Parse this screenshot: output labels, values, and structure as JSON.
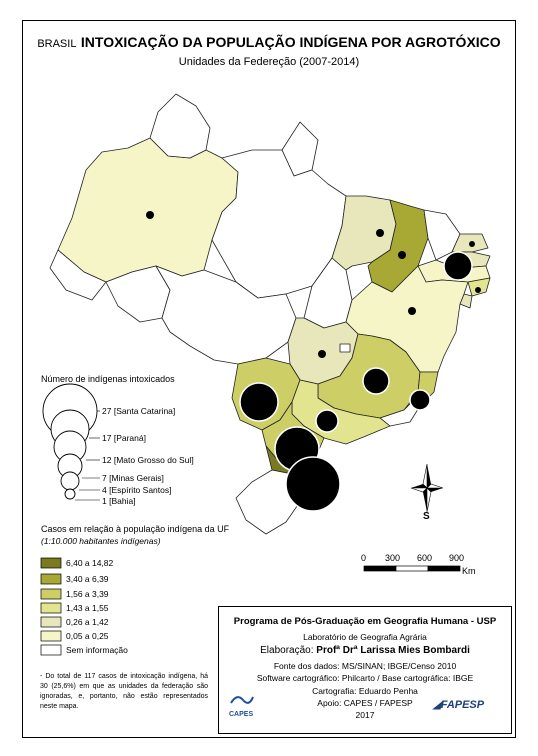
{
  "header": {
    "prefix": "BRASIL",
    "title": "INTOXICAÇÃO DA POPULAÇÃO INDÍGENA POR AGROTÓXICO",
    "subtitle": "Unidades da Federeção (2007-2014)"
  },
  "size_legend": {
    "title": "Número de indígenas intoxicados",
    "entries": [
      {
        "value": "27",
        "state": "[Santa Catarina]"
      },
      {
        "value": "17",
        "state": "[Paraná]"
      },
      {
        "value": "12",
        "state": "[Mato Grosso do Sul]"
      },
      {
        "value": "7",
        "state": "[Minas Gerais]"
      },
      {
        "value": "4",
        "state": "[Espírito Santos]"
      },
      {
        "value": "1",
        "state": "[Bahia]"
      }
    ]
  },
  "color_legend": {
    "title": "Casos em relação à população indígena da UF",
    "subtitle": "(1:10.000 habitantes indígenas)",
    "classes": [
      {
        "label": "6,40 a 14,82",
        "color": "#7a7a20"
      },
      {
        "label": "3,40 a 6,39",
        "color": "#a8a835"
      },
      {
        "label": "1,56 a 3,39",
        "color": "#cdcf66"
      },
      {
        "label": "1,43 a 1,55",
        "color": "#e2e48f"
      },
      {
        "label": "0,26 a 1,42",
        "color": "#e8e6bb"
      },
      {
        "label": "0,05 a 0,25",
        "color": "#f5f5c8"
      },
      {
        "label": "Sem informação",
        "color": "#ffffff"
      }
    ]
  },
  "scale_bar": {
    "ticks": [
      "0",
      "300",
      "600",
      "900"
    ],
    "unit": "Km"
  },
  "north_arrow": {
    "label": "S"
  },
  "footnote": "- Do total de 117 casos de intoxicação indígena, há 30 (25,6%) em que as unidades da federação são ignoradas, e, portanto, não estão representados neste mapa.",
  "credits": {
    "program": "Programa de Pós-Graduação em Geografia Humana - USP",
    "lab": "Laboratório de Geografia Agrária",
    "elaboration_label": "Elaboração:",
    "elaboration_name": "Profª Drª Larissa Mies Bombardi",
    "sources": "Fonte dos dados: MS/SINAN; IBGE/Censo 2010",
    "software": "Software cartográfico: Philcarto / Base cartográfica: IBGE",
    "cartography": "Cartografia: Eduardo Penha",
    "support": "Apoio: CAPES / FAPESP",
    "year": "2017",
    "logo_left": "CAPES",
    "logo_right": "FAPESP"
  }
}
